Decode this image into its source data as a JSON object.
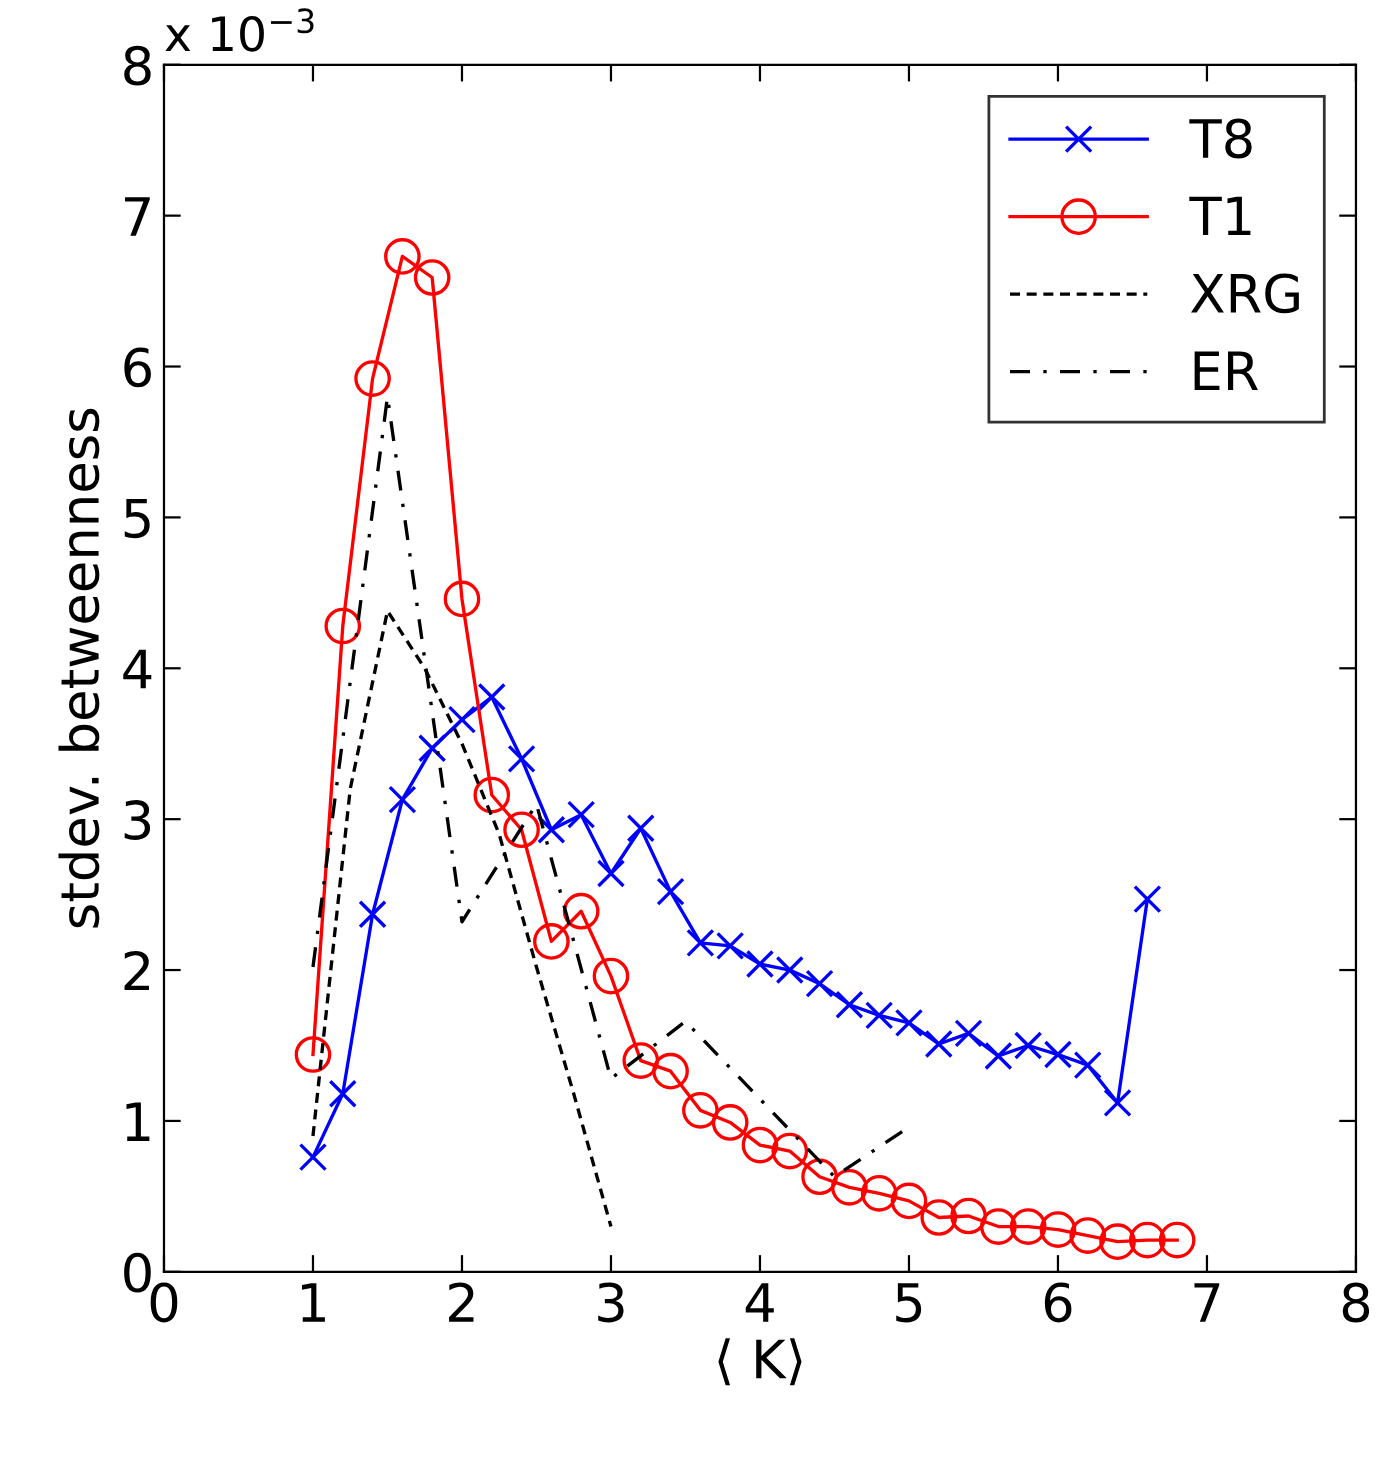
{
  "chart_data": {
    "type": "line",
    "xlabel": "⟨ K⟩",
    "ylabel": "stdev. betweenness",
    "annotations": [
      "x 10$^{−3}$"
    ],
    "xlim": [
      0,
      8
    ],
    "xticks": [
      0,
      1,
      2,
      3,
      4,
      5,
      6,
      7,
      8
    ],
    "ylim": [
      0,
      8
    ],
    "yticks": [
      0,
      1,
      2,
      3,
      4,
      5,
      6,
      7,
      8
    ],
    "grid": false,
    "legend": "top right",
    "series": [
      {
        "name": "T8",
        "color": "#0000ff",
        "marker": "cross",
        "line_style": "solid",
        "x": [
          1.0,
          1.2,
          1.4,
          1.6,
          1.8,
          2.0,
          2.2,
          2.4,
          2.6,
          2.8,
          3.0,
          3.2,
          3.4,
          3.6,
          3.8,
          4.0,
          4.2,
          4.4,
          4.6,
          4.8,
          5.0,
          5.2,
          5.4,
          5.6,
          5.8,
          6.0,
          6.2,
          6.4,
          6.6
        ],
        "values": [
          0.76,
          1.18,
          2.37,
          3.13,
          3.47,
          3.66,
          3.81,
          3.4,
          2.93,
          3.03,
          2.64,
          2.94,
          2.52,
          2.18,
          2.16,
          2.04,
          2.0,
          1.91,
          1.77,
          1.7,
          1.65,
          1.51,
          1.58,
          1.43,
          1.5,
          1.44,
          1.37,
          1.12,
          2.47
        ]
      },
      {
        "name": "T1",
        "color": "#ff0000",
        "marker": "circle",
        "line_style": "solid",
        "x": [
          1.0,
          1.2,
          1.4,
          1.6,
          1.8,
          2.0,
          2.2,
          2.4,
          2.6,
          2.8,
          3.0,
          3.2,
          3.4,
          3.6,
          3.8,
          4.0,
          4.2,
          4.4,
          4.6,
          4.8,
          5.0,
          5.2,
          5.4,
          5.6,
          5.8,
          6.0,
          6.2,
          6.4,
          6.6,
          6.8
        ],
        "values": [
          1.44,
          4.28,
          5.92,
          6.73,
          6.59,
          4.46,
          3.16,
          2.93,
          2.19,
          2.39,
          1.96,
          1.4,
          1.33,
          1.07,
          0.99,
          0.84,
          0.8,
          0.63,
          0.56,
          0.52,
          0.47,
          0.36,
          0.37,
          0.3,
          0.3,
          0.28,
          0.24,
          0.2,
          0.21,
          0.21
        ]
      },
      {
        "name": "XRG",
        "color": "#000000",
        "marker": "none",
        "line_style": "dashed",
        "x": [
          1.0,
          1.25,
          1.5,
          1.75,
          2.0,
          2.25,
          2.5,
          2.75,
          3.0
        ],
        "values": [
          0.9,
          3.2,
          4.38,
          4.0,
          3.5,
          2.9,
          2.02,
          1.18,
          0.3
        ]
      },
      {
        "name": "ER",
        "color": "#000000",
        "marker": "none",
        "line_style": "dashdot",
        "x": [
          1.0,
          1.5,
          2.0,
          2.5,
          3.0,
          3.5,
          4.5,
          5.0
        ],
        "values": [
          2.02,
          5.8,
          2.32,
          3.1,
          1.28,
          1.66,
          0.63,
          0.96
        ]
      }
    ]
  }
}
